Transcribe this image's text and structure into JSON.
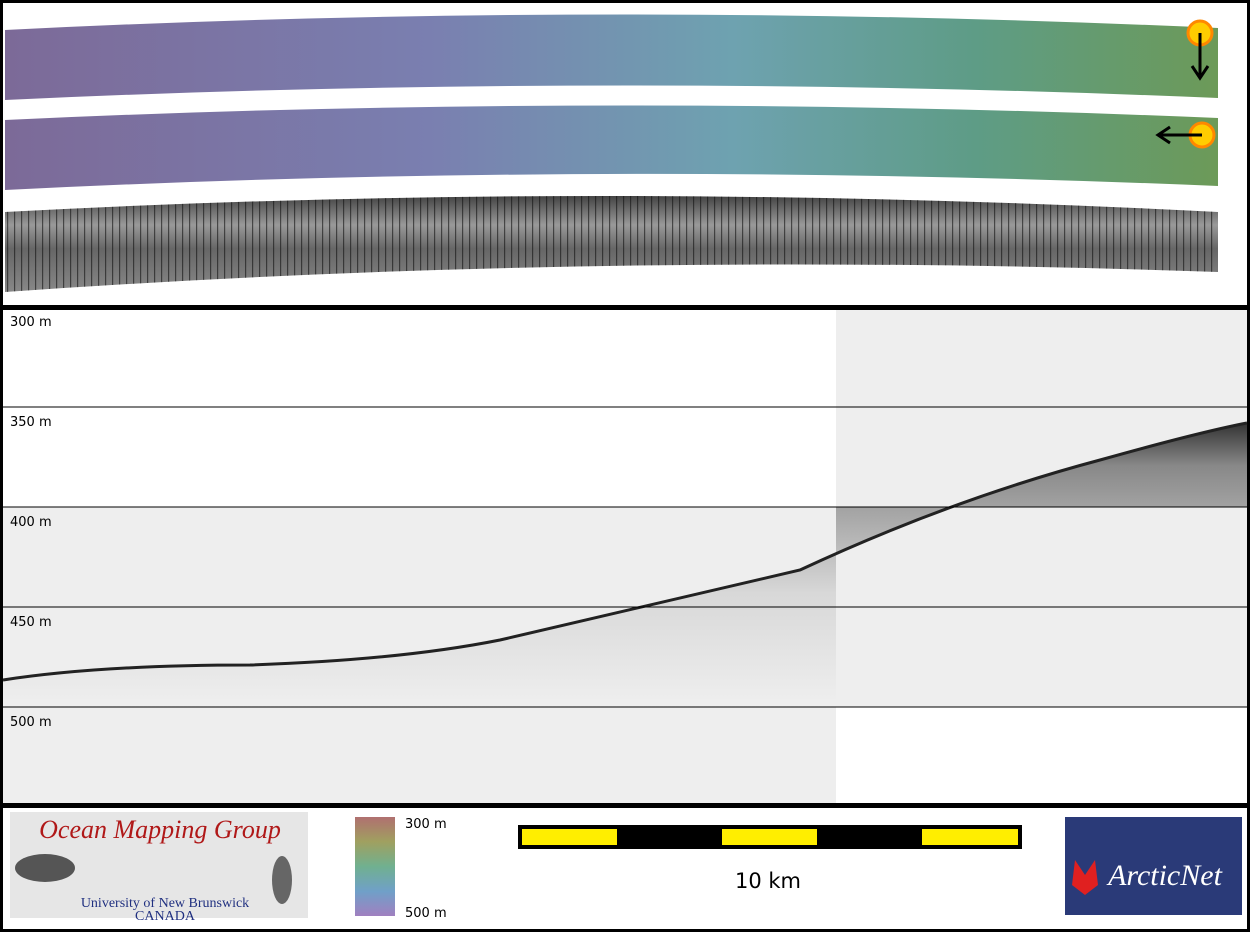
{
  "profile": {
    "depth_labels": [
      "300 m",
      "350 m",
      "400 m",
      "450 m",
      "500 m"
    ]
  },
  "colorbar": {
    "top_label": "300 m",
    "bottom_label": "500 m"
  },
  "scale_bar": {
    "label": "10 km"
  },
  "logos": {
    "omg": {
      "title": "Ocean Mapping Group",
      "university": "University of New Brunswick",
      "country": "CANADA"
    },
    "arcticnet": {
      "name": "ArcticNet"
    }
  }
}
